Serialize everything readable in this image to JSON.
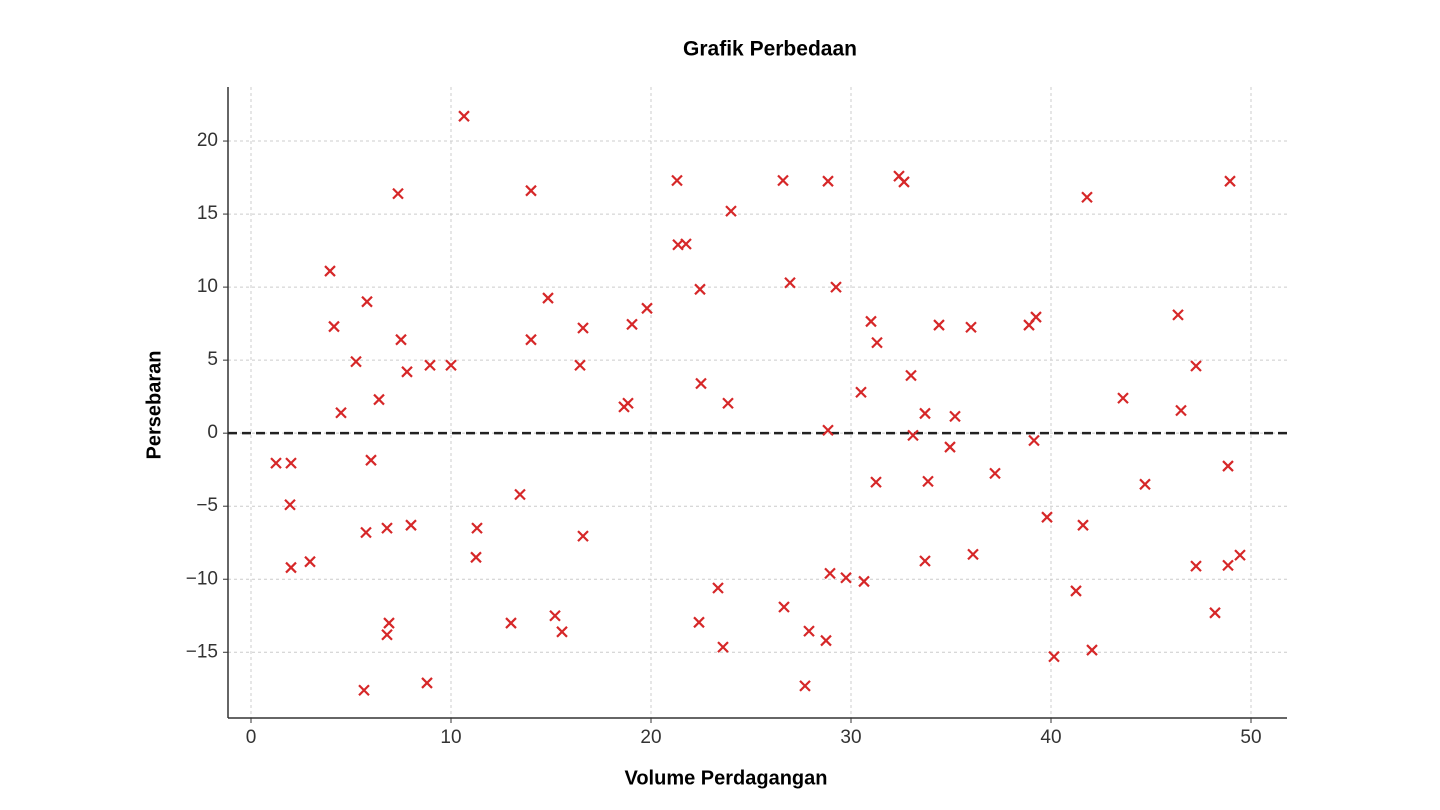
{
  "chart_data": {
    "type": "scatter",
    "title": "Grafik Perbedaan",
    "x_label": "Volume Perdagangan",
    "y_label": "Persebaran",
    "xlim": [
      -1.15,
      51.8
    ],
    "ylim": [
      -19.5,
      23.7
    ],
    "xticks": [
      0,
      10,
      20,
      30,
      40,
      50
    ],
    "yticks": [
      {
        "value": -15,
        "label": "−15"
      },
      {
        "value": -10,
        "label": "−10"
      },
      {
        "value": -5,
        "label": "−5"
      },
      0,
      5,
      10,
      15,
      20
    ],
    "grid": true,
    "marker": "x",
    "color": "#d62728",
    "reference_line": {
      "y": 0,
      "style": "dashed",
      "color": "#222222"
    },
    "x": [
      1.25,
      2.0,
      1.95,
      2.0,
      2.95,
      3.95,
      4.15,
      4.5,
      5.25,
      5.65,
      5.75,
      5.8,
      6.0,
      6.4,
      6.8,
      6.9,
      6.8,
      7.35,
      7.5,
      7.8,
      8.0,
      8.8,
      8.95,
      10.0,
      10.65,
      11.3,
      11.25,
      13.0,
      13.45,
      14.0,
      14.0,
      14.85,
      15.2,
      15.55,
      16.45,
      16.6,
      16.6,
      18.65,
      18.85,
      19.05,
      19.8,
      21.3,
      21.35,
      21.75,
      22.45,
      22.5,
      22.4,
      23.35,
      23.6,
      23.85,
      24.0,
      26.6,
      26.65,
      26.95,
      27.7,
      27.9,
      28.75,
      28.85,
      28.85,
      28.95,
      29.25,
      29.75,
      30.5,
      30.65,
      31.0,
      31.3,
      31.25,
      32.4,
      32.65,
      33.0,
      33.1,
      33.7,
      33.7,
      33.85,
      34.4,
      34.95,
      35.2,
      36.0,
      36.1,
      37.2,
      38.9,
      39.25,
      39.15,
      39.8,
      40.15,
      41.25,
      41.6,
      41.8,
      42.05,
      43.6,
      44.7,
      46.35,
      46.5,
      47.25,
      47.25,
      48.2,
      48.85,
      48.85,
      48.95,
      49.45
    ],
    "values": [
      -2.05,
      -2.05,
      -4.9,
      -9.2,
      -8.8,
      11.1,
      7.3,
      1.4,
      4.9,
      -17.6,
      -6.8,
      9.0,
      -1.85,
      2.3,
      -6.5,
      -13.0,
      -13.8,
      16.4,
      6.4,
      4.2,
      -6.3,
      -17.1,
      4.65,
      4.65,
      21.7,
      -6.5,
      -8.5,
      -13.0,
      -4.2,
      16.6,
      6.4,
      9.25,
      -12.5,
      -13.6,
      4.65,
      7.2,
      -7.05,
      1.8,
      2.05,
      7.45,
      8.55,
      17.3,
      12.9,
      12.95,
      9.85,
      3.4,
      -12.95,
      -10.6,
      -14.65,
      2.05,
      15.2,
      17.3,
      -11.9,
      10.3,
      -17.3,
      -13.55,
      -14.2,
      17.25,
      0.2,
      -9.6,
      10.0,
      -9.9,
      2.8,
      -10.15,
      7.65,
      6.2,
      -3.35,
      17.6,
      17.2,
      3.95,
      -0.15,
      1.35,
      -8.75,
      -3.3,
      7.4,
      -0.95,
      1.15,
      7.25,
      -8.3,
      -2.75,
      7.4,
      7.95,
      -0.5,
      -5.75,
      -15.3,
      -10.8,
      -6.3,
      16.15,
      -14.85,
      2.4,
      -3.5,
      8.1,
      1.55,
      4.6,
      -9.1,
      -12.3,
      -2.25,
      -9.05,
      17.25,
      -8.35
    ]
  }
}
